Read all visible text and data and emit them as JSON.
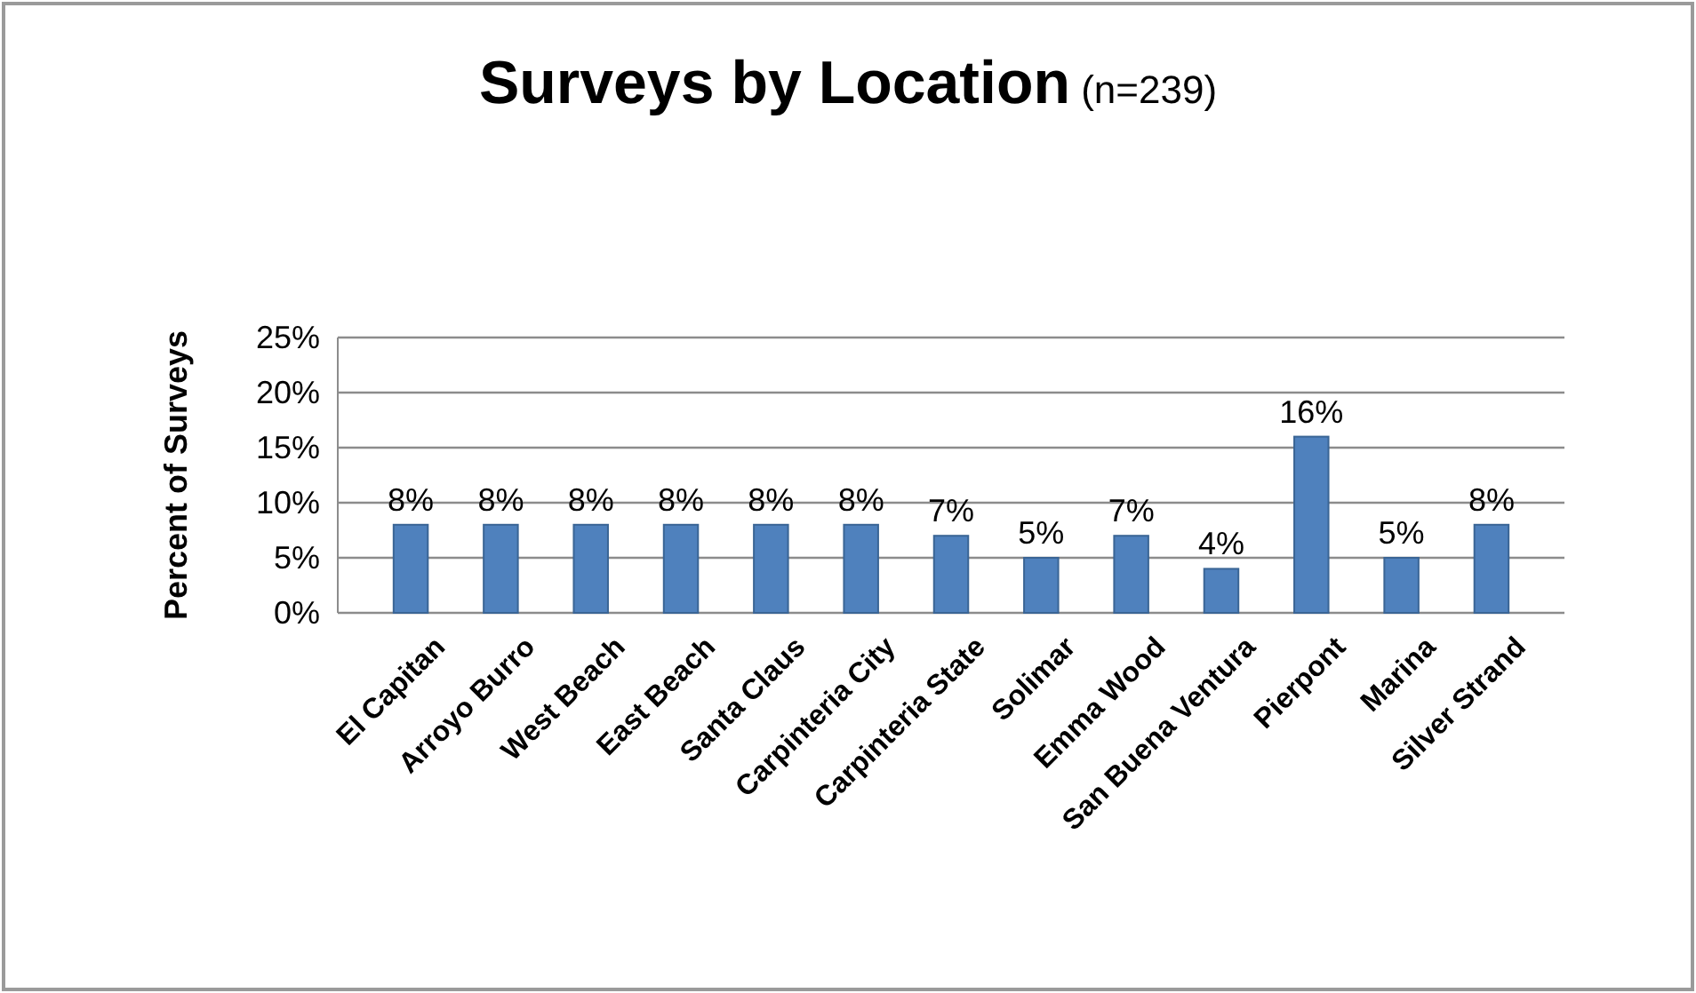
{
  "chart_data": {
    "type": "bar",
    "title": "Surveys by Location",
    "subtitle": "(n=239)",
    "ylabel": "Percent of Surveys",
    "categories": [
      "El Capitan",
      "Arroyo Burro",
      "West Beach",
      "East Beach",
      "Santa Claus",
      "Carpinteria City",
      "Carpinteria State",
      "Solimar",
      "Emma Wood",
      "San Buena Ventura",
      "Pierpont",
      "Marina",
      "Silver Strand"
    ],
    "values": [
      8,
      8,
      8,
      8,
      8,
      8,
      7,
      5,
      7,
      4,
      16,
      5,
      8
    ],
    "value_labels": [
      "8%",
      "8%",
      "8%",
      "8%",
      "8%",
      "8%",
      "7%",
      "5%",
      "7%",
      "4%",
      "16%",
      "5%",
      "8%"
    ],
    "color": "#4f81bd",
    "ylim": [
      0,
      25
    ],
    "yticks": [
      {
        "value": 0,
        "label": "0%"
      },
      {
        "value": 5,
        "label": "5%"
      },
      {
        "value": 10,
        "label": "10%"
      },
      {
        "value": 15,
        "label": "15%"
      },
      {
        "value": 20,
        "label": "20%"
      },
      {
        "value": 25,
        "label": "25%"
      }
    ],
    "grid": "y"
  }
}
